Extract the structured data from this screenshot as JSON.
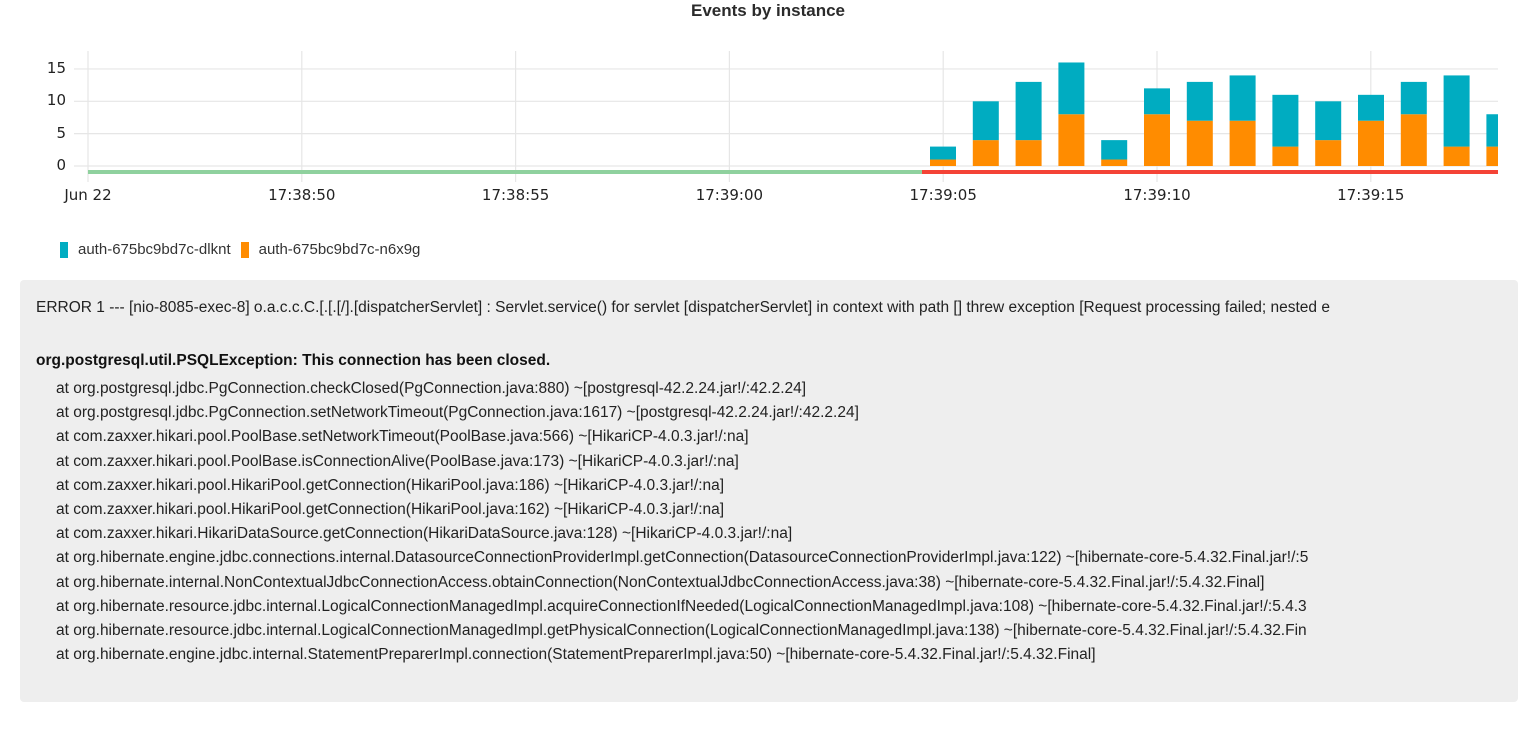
{
  "chart_data": {
    "type": "bar",
    "stacked": true,
    "title": "Events by instance",
    "xlabel": "",
    "ylabel": "",
    "ylim": [
      0,
      17
    ],
    "yticks": [
      0,
      5,
      10,
      15
    ],
    "xtick_labels": [
      "Jun 22",
      "17:38:50",
      "17:38:55",
      "17:39:00",
      "17:39:05",
      "17:39:10",
      "17:39:15"
    ],
    "grid": true,
    "legend_position": "bottom-left",
    "categories": [
      "17:39:05",
      "17:39:06",
      "17:39:07",
      "17:39:08",
      "17:39:09",
      "17:39:10",
      "17:39:11",
      "17:39:12",
      "17:39:13",
      "17:39:14",
      "17:39:15",
      "17:39:16",
      "17:39:17",
      "17:39:18"
    ],
    "series": [
      {
        "name": "auth-675bc9bd7c-n6x9g",
        "color": "#ff8c00",
        "values": [
          1,
          4,
          4,
          8,
          1,
          8,
          7,
          7,
          3,
          4,
          7,
          8,
          3,
          3
        ]
      },
      {
        "name": "auth-675bc9bd7c-dlknt",
        "color": "#00acc1",
        "values": [
          2,
          6,
          9,
          8,
          3,
          4,
          6,
          7,
          8,
          6,
          4,
          5,
          11,
          5
        ]
      }
    ],
    "status_timeline": [
      {
        "from": "Jun 22 17:38:46",
        "to": "17:39:05",
        "color": "#8fd19e",
        "state": "ok"
      },
      {
        "from": "17:39:05",
        "to": "17:39:18",
        "color": "#f44336",
        "state": "error"
      }
    ]
  },
  "legend": {
    "items": [
      {
        "label": "auth-675bc9bd7c-dlknt",
        "color": "#00acc1"
      },
      {
        "label": "auth-675bc9bd7c-n6x9g",
        "color": "#ff8c00"
      }
    ]
  },
  "log": {
    "header": "ERROR 1 --- [nio-8085-exec-8] o.a.c.c.C.[.[.[/].[dispatcherServlet] : Servlet.service() for servlet [dispatcherServlet] in context with path [] threw exception [Request processing failed; nested e",
    "exception": "org.postgresql.util.PSQLException: This connection has been closed.",
    "frames": [
      "at org.postgresql.jdbc.PgConnection.checkClosed(PgConnection.java:880) ~[postgresql-42.2.24.jar!/:42.2.24]",
      "at org.postgresql.jdbc.PgConnection.setNetworkTimeout(PgConnection.java:1617) ~[postgresql-42.2.24.jar!/:42.2.24]",
      "at com.zaxxer.hikari.pool.PoolBase.setNetworkTimeout(PoolBase.java:566) ~[HikariCP-4.0.3.jar!/:na]",
      "at com.zaxxer.hikari.pool.PoolBase.isConnectionAlive(PoolBase.java:173) ~[HikariCP-4.0.3.jar!/:na]",
      "at com.zaxxer.hikari.pool.HikariPool.getConnection(HikariPool.java:186) ~[HikariCP-4.0.3.jar!/:na]",
      "at com.zaxxer.hikari.pool.HikariPool.getConnection(HikariPool.java:162) ~[HikariCP-4.0.3.jar!/:na]",
      "at com.zaxxer.hikari.HikariDataSource.getConnection(HikariDataSource.java:128) ~[HikariCP-4.0.3.jar!/:na]",
      "at org.hibernate.engine.jdbc.connections.internal.DatasourceConnectionProviderImpl.getConnection(DatasourceConnectionProviderImpl.java:122) ~[hibernate-core-5.4.32.Final.jar!/:5",
      "at org.hibernate.internal.NonContextualJdbcConnectionAccess.obtainConnection(NonContextualJdbcConnectionAccess.java:38) ~[hibernate-core-5.4.32.Final.jar!/:5.4.32.Final]",
      "at org.hibernate.resource.jdbc.internal.LogicalConnectionManagedImpl.acquireConnectionIfNeeded(LogicalConnectionManagedImpl.java:108) ~[hibernate-core-5.4.32.Final.jar!/:5.4.3",
      "at org.hibernate.resource.jdbc.internal.LogicalConnectionManagedImpl.getPhysicalConnection(LogicalConnectionManagedImpl.java:138) ~[hibernate-core-5.4.32.Final.jar!/:5.4.32.Fin",
      "at org.hibernate.engine.jdbc.internal.StatementPreparerImpl.connection(StatementPreparerImpl.java:50) ~[hibernate-core-5.4.32.Final.jar!/:5.4.32.Final]"
    ]
  }
}
